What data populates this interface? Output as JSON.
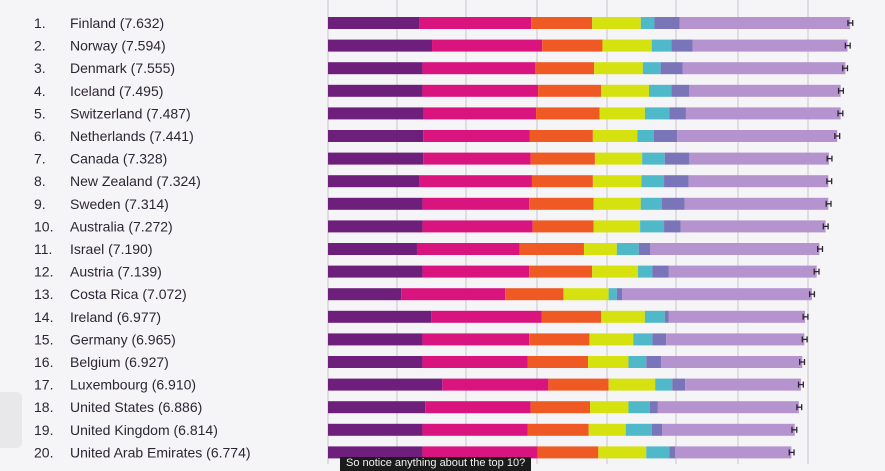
{
  "chart_data": {
    "type": "bar",
    "stacked": true,
    "orientation": "horizontal",
    "title": "",
    "xlabel": "",
    "ylabel": "",
    "grid": true,
    "categories": [
      {
        "rank": "1.",
        "label": "Finland (7.632)"
      },
      {
        "rank": "2.",
        "label": "Norway (7.594)"
      },
      {
        "rank": "3.",
        "label": "Denmark (7.555)"
      },
      {
        "rank": "4.",
        "label": "Iceland (7.495)"
      },
      {
        "rank": "5.",
        "label": "Switzerland (7.487)"
      },
      {
        "rank": "6.",
        "label": "Netherlands (7.441)"
      },
      {
        "rank": "7.",
        "label": "Canada (7.328)"
      },
      {
        "rank": "8.",
        "label": "New Zealand (7.324)"
      },
      {
        "rank": "9.",
        "label": "Sweden (7.314)"
      },
      {
        "rank": "10.",
        "label": "Australia (7.272)"
      },
      {
        "rank": "11.",
        "label": "Israel (7.190)"
      },
      {
        "rank": "12.",
        "label": "Austria (7.139)"
      },
      {
        "rank": "13.",
        "label": "Costa Rica (7.072)"
      },
      {
        "rank": "14.",
        "label": "Ireland (6.977)"
      },
      {
        "rank": "15.",
        "label": "Germany (6.965)"
      },
      {
        "rank": "16.",
        "label": "Belgium (6.927)"
      },
      {
        "rank": "17.",
        "label": "Luxembourg (6.910)"
      },
      {
        "rank": "18.",
        "label": "United States (6.886)"
      },
      {
        "rank": "19.",
        "label": "United Kingdom (6.814)"
      },
      {
        "rank": "20.",
        "label": "United Arab Emirates (6.774)"
      }
    ],
    "scores": [
      7.632,
      7.594,
      7.555,
      7.495,
      7.487,
      7.441,
      7.328,
      7.324,
      7.314,
      7.272,
      7.19,
      7.139,
      7.072,
      6.977,
      6.965,
      6.927,
      6.91,
      6.886,
      6.814,
      6.774
    ],
    "x_max": 7.7,
    "series": [
      {
        "color": "#6e1f7c",
        "values": [
          1.34,
          1.52,
          1.38,
          1.38,
          1.4,
          1.39,
          1.39,
          1.34,
          1.38,
          1.38,
          1.3,
          1.38,
          1.07,
          1.51,
          1.38,
          1.38,
          1.67,
          1.42,
          1.38,
          1.38
        ]
      },
      {
        "color": "#d9147e",
        "values": [
          1.63,
          1.61,
          1.65,
          1.69,
          1.64,
          1.56,
          1.57,
          1.64,
          1.56,
          1.61,
          1.5,
          1.56,
          1.52,
          1.61,
          1.56,
          1.54,
          1.55,
          1.54,
          1.54,
          1.68
        ]
      },
      {
        "color": "#ef5a24",
        "values": [
          0.89,
          0.88,
          0.86,
          0.92,
          0.93,
          0.92,
          0.94,
          0.89,
          0.94,
          0.89,
          0.94,
          0.92,
          0.85,
          0.87,
          0.88,
          0.88,
          0.88,
          0.87,
          0.89,
          0.89
        ]
      },
      {
        "color": "#d5e20f",
        "values": [
          0.71,
          0.72,
          0.71,
          0.7,
          0.66,
          0.65,
          0.69,
          0.71,
          0.69,
          0.68,
          0.48,
          0.67,
          0.66,
          0.64,
          0.64,
          0.59,
          0.68,
          0.56,
          0.54,
          0.7
        ]
      },
      {
        "color": "#4fb8c9",
        "values": [
          0.2,
          0.29,
          0.26,
          0.33,
          0.36,
          0.24,
          0.33,
          0.33,
          0.31,
          0.35,
          0.32,
          0.21,
          0.12,
          0.29,
          0.28,
          0.26,
          0.25,
          0.31,
          0.38,
          0.34
        ]
      },
      {
        "color": "#7a74b9",
        "values": [
          0.37,
          0.31,
          0.32,
          0.26,
          0.24,
          0.34,
          0.36,
          0.36,
          0.33,
          0.24,
          0.17,
          0.24,
          0.08,
          0.06,
          0.2,
          0.22,
          0.19,
          0.12,
          0.15,
          0.08
        ]
      },
      {
        "color": "#b493cf",
        "values": [
          2.49,
          2.26,
          2.38,
          2.21,
          2.26,
          2.34,
          2.04,
          2.04,
          2.1,
          2.12,
          2.47,
          2.16,
          2.77,
          1.99,
          2.02,
          2.06,
          1.69,
          2.06,
          1.94,
          1.7
        ]
      }
    ],
    "error_bar_halfwidth": 0.035
  },
  "caption": "So notice anything about the top 10?",
  "colors": {
    "background": "#f5f4f6",
    "gridline": "#c9c6cc",
    "error_bar": "#2d2633",
    "text": "#2d2633"
  }
}
